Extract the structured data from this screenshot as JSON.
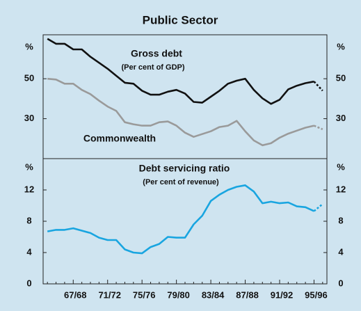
{
  "chart_data": [
    {
      "type": "line",
      "title": "Public Sector",
      "ylabel": "%",
      "ylim": [
        10,
        72
      ],
      "yticks": [
        30,
        50
      ],
      "series": [
        {
          "name": "Gross debt",
          "unit": "(Per cent of GDP)",
          "color": "#111111",
          "dashed_from": 31,
          "values": [
            70,
            67.5,
            67.5,
            64.7,
            64.7,
            61,
            58,
            55,
            51.5,
            48,
            47.5,
            44,
            42,
            42,
            43.5,
            44.4,
            42.6,
            38.4,
            38,
            41,
            44,
            47.5,
            49,
            50,
            44.4,
            40.2,
            37.4,
            39.5,
            44.7,
            46.5,
            47.8,
            48.6,
            44
          ]
        },
        {
          "name": "Commonwealth",
          "color": "#9a9a9a",
          "dashed_from": 31,
          "values": [
            50,
            49.6,
            47.5,
            47.5,
            44.4,
            42.3,
            39,
            36.1,
            33.9,
            28.2,
            27.2,
            26.5,
            26.5,
            28.2,
            28.6,
            26.5,
            23,
            20.9,
            22.3,
            23.7,
            25.8,
            26.5,
            28.9,
            23.7,
            19.1,
            16.7,
            17.7,
            20.5,
            22.5,
            24,
            25.5,
            26.5,
            24.7
          ]
        }
      ]
    },
    {
      "type": "line",
      "ylabel": "%",
      "ylim": [
        0,
        16
      ],
      "yticks": [
        0,
        4,
        8,
        12
      ],
      "categories": [
        null,
        null,
        null,
        "67/68",
        null,
        null,
        null,
        "71/72",
        null,
        null,
        null,
        "75/76",
        null,
        null,
        null,
        "79/80",
        null,
        null,
        null,
        "83/84",
        null,
        null,
        null,
        "87/88",
        null,
        null,
        null,
        "91/92",
        null,
        null,
        null,
        "95/96",
        null
      ],
      "series": [
        {
          "name": "Debt servicing ratio",
          "unit": "(Per cent of revenue)",
          "color": "#19a5e0",
          "dashed_from": 31,
          "values": [
            6.7,
            6.9,
            6.9,
            7.1,
            6.8,
            6.5,
            5.9,
            5.6,
            5.6,
            4.4,
            4,
            3.9,
            4.7,
            5.1,
            6,
            5.9,
            5.9,
            7.6,
            8.7,
            10.6,
            11.4,
            12,
            12.4,
            12.6,
            11.8,
            10.3,
            10.5,
            10.3,
            10.4,
            9.9,
            9.8,
            9.3,
            10.2
          ]
        }
      ]
    }
  ]
}
